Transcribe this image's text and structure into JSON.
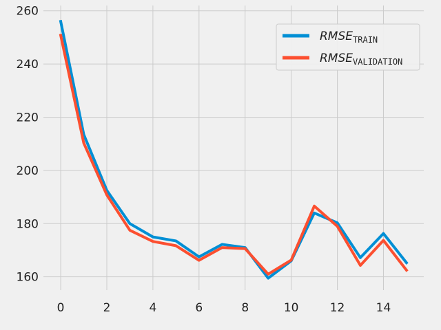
{
  "chart_data": {
    "type": "line",
    "x": [
      0,
      1,
      2,
      3,
      4,
      5,
      6,
      7,
      8,
      9,
      10,
      11,
      12,
      13,
      14,
      15
    ],
    "series": [
      {
        "name": "RMSE_TRAIN",
        "label_main": "RMSE",
        "label_sub": "TRAIN",
        "color": "#008fd5",
        "values": [
          256,
          213.5,
          192.5,
          180,
          175,
          173.5,
          167.5,
          172.2,
          171,
          159.5,
          166,
          184,
          180.3,
          167.2,
          176.3,
          165.3
        ]
      },
      {
        "name": "RMSE_VALIDATION",
        "label_main": "RMSE",
        "label_sub": "VALIDATION",
        "color": "#fc4f30",
        "values": [
          250.8,
          210.3,
          190.8,
          177.5,
          173.3,
          171.7,
          166.2,
          171,
          170.6,
          161,
          166.3,
          186.6,
          179,
          164.3,
          173.7,
          162.5
        ]
      }
    ],
    "xlim": [
      -0.75,
      15.75
    ],
    "ylim": [
      155,
      262
    ],
    "xticks": [
      0,
      2,
      4,
      6,
      8,
      10,
      12,
      14
    ],
    "yticks": [
      160,
      180,
      200,
      220,
      240,
      260
    ],
    "grid": true,
    "legend_position": "top-right",
    "title": "",
    "xlabel": "",
    "ylabel": ""
  }
}
